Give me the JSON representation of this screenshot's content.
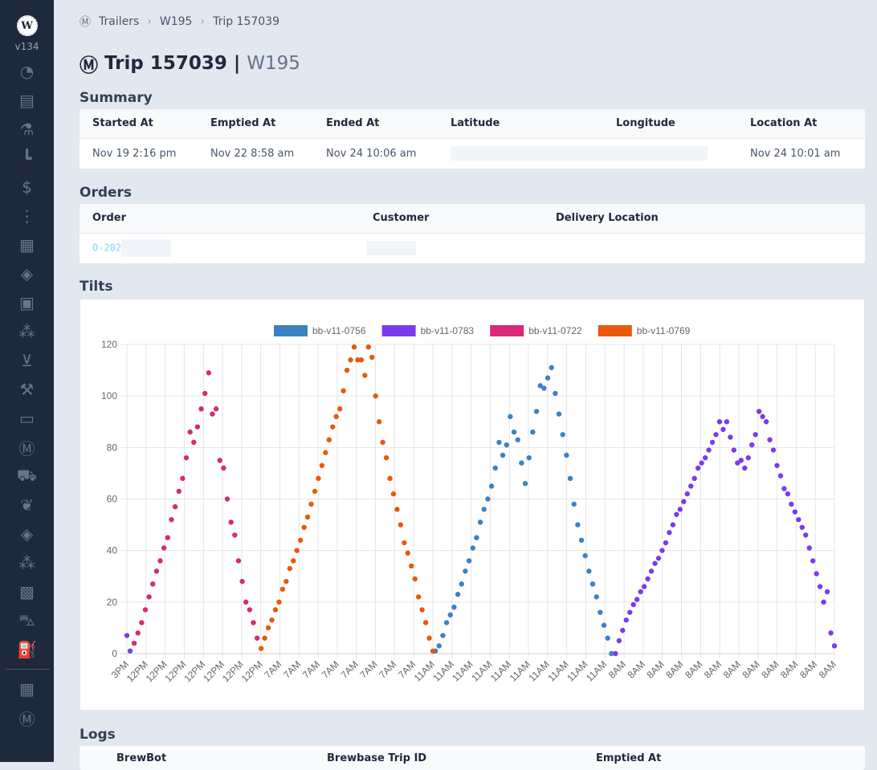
{
  "sidebar": {
    "logo": "W",
    "version": "v134",
    "items": [
      "dashboard",
      "orders",
      "lab",
      "schedule",
      "billing",
      "status",
      "calendar",
      "layers",
      "checklist",
      "hops",
      "malt",
      "auction",
      "id-card",
      "trailers",
      "trucks",
      "plants",
      "layers-2",
      "hops-2",
      "contacts",
      "forklift",
      "fuel"
    ],
    "bottom": [
      "calendar",
      "trailers"
    ]
  },
  "breadcrumb": {
    "items": [
      "Trailers",
      "W195",
      "Trip 157039"
    ]
  },
  "header": {
    "title": "Trip 157039",
    "separator": "|",
    "subtitle": "W195"
  },
  "summary": {
    "title": "Summary",
    "columns": [
      "Started At",
      "Emptied At",
      "Ended At",
      "Latitude",
      "Longitude",
      "Location At"
    ],
    "row": [
      "Nov 19 2:16 pm",
      "Nov 22 8:58 am",
      "Nov 24 10:06 am",
      "",
      "",
      "Nov 24 10:01 am"
    ]
  },
  "orders": {
    "title": "Orders",
    "columns": [
      "Order",
      "Customer",
      "Delivery Location"
    ],
    "row": [
      "O-202",
      "",
      ""
    ]
  },
  "tilts": {
    "title": "Tilts"
  },
  "logs": {
    "title": "Logs",
    "columns": [
      "BrewBot",
      "Brewbase Trip ID",
      "Emptied At"
    ]
  },
  "chart_data": {
    "type": "scatter",
    "ylim": [
      0,
      120
    ],
    "yticks": [
      0,
      20,
      40,
      60,
      80,
      100,
      120
    ],
    "legend_position": "top",
    "grid": true,
    "xticks": [
      "3PM",
      "12PM",
      "12PM",
      "12PM",
      "12PM",
      "12PM",
      "12PM",
      "12PM",
      "7AM",
      "7AM",
      "7AM",
      "7AM",
      "7AM",
      "7AM",
      "7AM",
      "7AM",
      "11AM",
      "11AM",
      "11AM",
      "11AM",
      "11AM",
      "11AM",
      "11AM",
      "11AM",
      "11AM",
      "11AM",
      "8AM",
      "8AM",
      "8AM",
      "8AM",
      "8AM",
      "8AM",
      "8AM",
      "8AM",
      "8AM",
      "8AM",
      "8AM",
      "8AM"
    ],
    "series": [
      {
        "name": "bb-v11-0756",
        "color": "#3b82c4",
        "segments": [
          {
            "x_start": 16.13,
            "x_end": 25.34,
            "values": [
              1,
              3,
              7,
              12,
              15,
              18,
              23,
              27,
              32,
              36,
              41,
              45,
              51,
              56,
              60,
              65,
              72,
              82,
              77,
              81,
              92,
              86,
              83,
              74,
              66,
              76,
              86,
              94,
              104,
              103,
              107,
              111,
              101,
              93,
              85,
              77,
              68,
              58,
              50,
              44,
              38,
              32,
              27,
              22,
              16,
              11,
              6,
              0
            ]
          }
        ]
      },
      {
        "name": "bb-v11-0783",
        "color": "#7c3aed",
        "segments": [
          {
            "x_start": 0,
            "x_end": 0.17,
            "values": [
              7,
              1
            ]
          },
          {
            "x_start": 25.55,
            "x_end": 37,
            "values": [
              0,
              5,
              9,
              13,
              16,
              19,
              21,
              24,
              26,
              29,
              32,
              35,
              37,
              40,
              43,
              47,
              50,
              54,
              56,
              59,
              62,
              65,
              68,
              72,
              74,
              76,
              79,
              82,
              85,
              90,
              87,
              90,
              84,
              79,
              74,
              75,
              72,
              76,
              81,
              85,
              94,
              92,
              90,
              83,
              79,
              73,
              69,
              64,
              62,
              58,
              55,
              52,
              49,
              46,
              41,
              36,
              31,
              26,
              20,
              24,
              8,
              3
            ]
          }
        ]
      },
      {
        "name": "bb-v11-0722",
        "color": "#db2777",
        "segments": [
          {
            "x_start": 0.38,
            "x_end": 6.81,
            "values": [
              4,
              8,
              12,
              17,
              22,
              27,
              32,
              36,
              41,
              45,
              52,
              57,
              63,
              68,
              76,
              86,
              82,
              88,
              95,
              101,
              109,
              93,
              95,
              75,
              72,
              60,
              51,
              46,
              36,
              28,
              20,
              17,
              12,
              6
            ]
          }
        ]
      },
      {
        "name": "bb-v11-0769",
        "color": "#ea580c",
        "segments": [
          {
            "x_start": 7.02,
            "x_end": 16.0,
            "values": [
              2,
              6,
              10,
              13,
              17,
              20,
              25,
              28,
              33,
              36,
              40,
              44,
              49,
              53,
              58,
              63,
              68,
              73,
              78,
              83,
              88,
              92,
              95,
              102,
              110,
              114,
              119,
              114,
              114,
              108,
              119,
              115,
              100,
              90,
              82,
              76,
              68,
              62,
              56,
              50,
              43,
              39,
              34,
              29,
              22,
              17,
              12,
              6,
              1
            ]
          }
        ]
      }
    ]
  }
}
